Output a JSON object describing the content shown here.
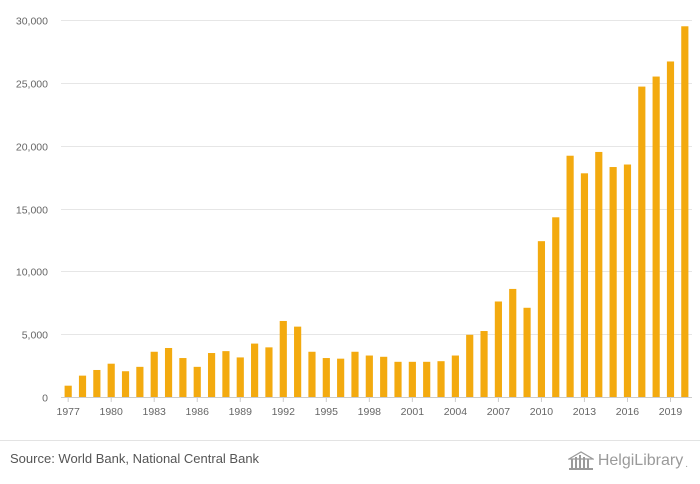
{
  "chart_data": {
    "type": "bar",
    "categories": [
      "1977",
      "1978",
      "1979",
      "1980",
      "1981",
      "1982",
      "1983",
      "1984",
      "1985",
      "1986",
      "1987",
      "1988",
      "1989",
      "1990",
      "1991",
      "1992",
      "1993",
      "1994",
      "1995",
      "1996",
      "1997",
      "1998",
      "1999",
      "2000",
      "2001",
      "2002",
      "2003",
      "2004",
      "2005",
      "2006",
      "2007",
      "2008",
      "2009",
      "2010",
      "2011",
      "2012",
      "2013",
      "2014",
      "2015",
      "2016",
      "2017",
      "2018",
      "2019",
      "2020"
    ],
    "values": [
      900,
      1700,
      2150,
      2650,
      2050,
      2400,
      3600,
      3900,
      3100,
      2400,
      3500,
      3650,
      3150,
      4250,
      3950,
      6050,
      5600,
      3600,
      3100,
      3050,
      3600,
      3300,
      3200,
      2800,
      2800,
      2800,
      2850,
      3300,
      4950,
      5250,
      7600,
      8600,
      7100,
      12400,
      14300,
      19200,
      17800,
      19500,
      18300,
      18500,
      24700,
      25500,
      26700,
      29500
    ],
    "ylim": [
      0,
      30000
    ],
    "yticks": [
      0,
      5000,
      10000,
      15000,
      20000,
      25000,
      30000
    ],
    "ytick_labels": [
      "0",
      "5,000",
      "10,000",
      "15,000",
      "20,000",
      "25,000",
      "30,000"
    ],
    "xtick_labels": [
      "1977",
      "1980",
      "1983",
      "1986",
      "1989",
      "1992",
      "1995",
      "1998",
      "2001",
      "2004",
      "2007",
      "2010",
      "2013",
      "2016",
      "2019"
    ],
    "bar_color": "#f3aa0f",
    "grid": true,
    "title": "",
    "xlabel": "",
    "ylabel": ""
  },
  "footer": {
    "source": "Source: World Bank, National Central Bank",
    "logo_text": "HelgiLibrary",
    "logo_suffix": "."
  }
}
